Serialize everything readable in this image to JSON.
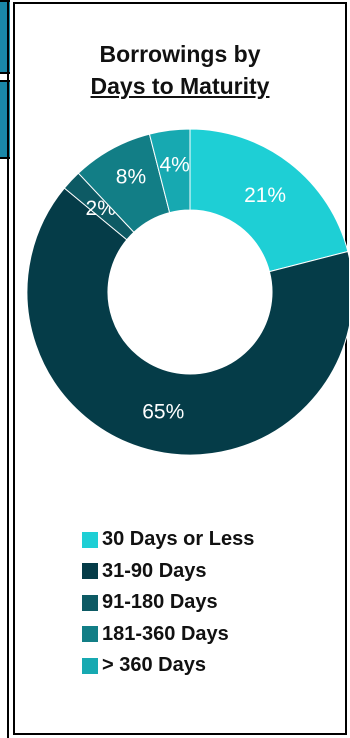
{
  "chart_data": {
    "type": "pie",
    "title_line1": "Borrowings by",
    "title_line2": "Days to Maturity",
    "categories": [
      "30 Days or Less",
      "31-90 Days",
      "91-180 Days",
      "181-360 Days",
      "> 360 Days"
    ],
    "values": [
      21,
      65,
      2,
      8,
      4
    ],
    "labels": [
      "21%",
      "65%",
      "2%",
      "8%",
      "4%"
    ],
    "colors": [
      "#1ecfd5",
      "#053c48",
      "#0d5a64",
      "#127e86",
      "#17a9b1"
    ],
    "label_colors": [
      "#ffffff",
      "#ffffff",
      "#ffffff",
      "#ffffff",
      "#ffffff"
    ],
    "donut": true,
    "legend_position": "bottom"
  }
}
